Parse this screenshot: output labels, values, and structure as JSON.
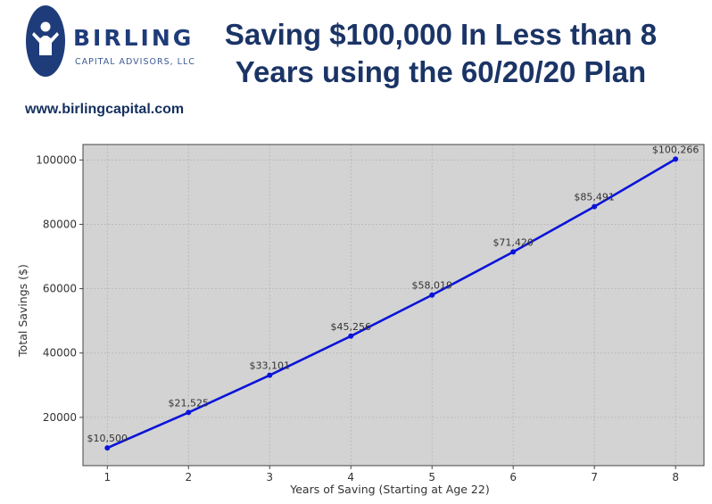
{
  "brand": {
    "name": "BIRLING",
    "tagline": "CAPITAL ADVISORS, LLC",
    "website": "www.birlingcapital.com"
  },
  "headline": {
    "line1": "Saving $100,000 In Less than 8",
    "line2": "Years using the 60/20/20 Plan"
  },
  "colors": {
    "brand_blue": "#1f3c7a",
    "line": "#0b14d8",
    "plot_bg": "#d3d3d3"
  },
  "chart_data": {
    "type": "line",
    "x": [
      1,
      2,
      3,
      4,
      5,
      6,
      7,
      8
    ],
    "values": [
      10500,
      21525,
      33101,
      45256,
      58019,
      71420,
      85491,
      100266
    ],
    "data_labels": [
      "$10,500",
      "$21,525",
      "$33,101",
      "$45,256",
      "$58,019",
      "$71,420",
      "$85,491",
      "$100,266"
    ],
    "xlabel": "Years of Saving (Starting at Age 22)",
    "ylabel": "Total Savings ($)",
    "xticks": [
      1,
      2,
      3,
      4,
      5,
      6,
      7,
      8
    ],
    "yticks": [
      20000,
      40000,
      60000,
      80000,
      100000
    ],
    "xlim": [
      0.7,
      8.35
    ],
    "ylim": [
      5000,
      104800
    ],
    "grid": true,
    "markers": true
  }
}
